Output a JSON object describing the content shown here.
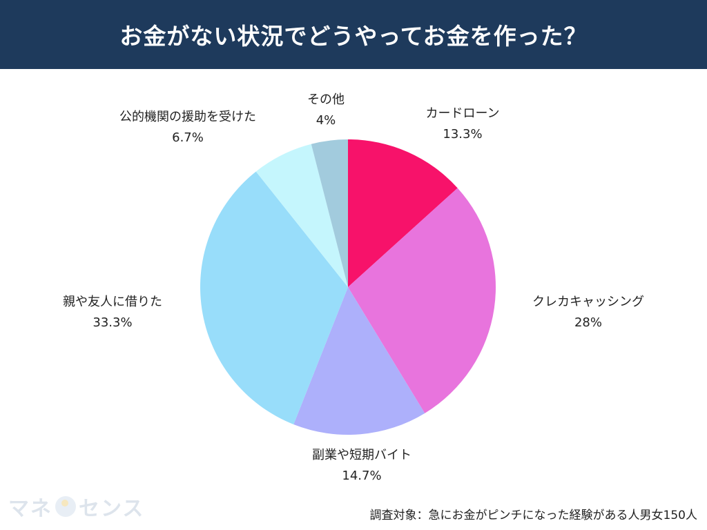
{
  "header": {
    "title": "お金がない状況でどうやってお金を作った？"
  },
  "chart_data": {
    "type": "pie",
    "title": "お金がない状況でどうやってお金を作った？",
    "slices": [
      {
        "label": "カードローン",
        "value": 13.3,
        "display": "13.3%",
        "color": "#f7126a"
      },
      {
        "label": "クレカキャッシング",
        "value": 28,
        "display": "28%",
        "color": "#e874dd"
      },
      {
        "label": "副業や短期バイト",
        "value": 14.7,
        "display": "14.7%",
        "color": "#adb0fb"
      },
      {
        "label": "親や友人に借りた",
        "value": 33.3,
        "display": "33.3%",
        "color": "#98ddfa"
      },
      {
        "label": "公的機関の援助を受けた",
        "value": 6.7,
        "display": "6.7%",
        "color": "#c5f6fd"
      },
      {
        "label": "その他",
        "value": 4,
        "display": "4%",
        "color": "#a2cbdd"
      }
    ]
  },
  "logo": {
    "text_left": "マネ",
    "text_right": "センス"
  },
  "footnote": "調査対象：急にお金がピンチになった経験がある人男女150人"
}
